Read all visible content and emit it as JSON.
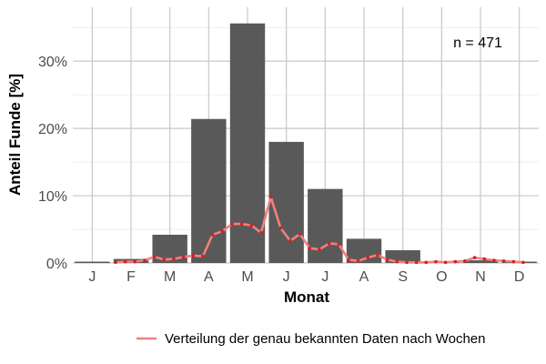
{
  "chart_data": {
    "type": "bar",
    "categories": [
      "J",
      "F",
      "M",
      "A",
      "M",
      "J",
      "J",
      "A",
      "S",
      "O",
      "N",
      "D"
    ],
    "values": [
      0.2,
      0.6,
      4.2,
      21.4,
      35.6,
      18.0,
      11.0,
      3.6,
      1.9,
      0.2,
      0.4,
      0.2
    ],
    "xlabel": "Monat",
    "ylabel": "Anteil Funde [%]",
    "ylim": [
      0,
      38
    ],
    "yticks": [
      0,
      10,
      20,
      30
    ],
    "ytick_labels": [
      "0%",
      "10%",
      "20%",
      "30%"
    ],
    "grid": true,
    "annotation": "n = 471",
    "bar_color": "#595959",
    "line_series": {
      "name": "Verteilung der genau bekannten Daten nach Wochen",
      "color": "#f08080",
      "point_color": "#d61f1f",
      "x": [
        1.6,
        1.85,
        2.1,
        2.35,
        2.6,
        2.85,
        3.1,
        3.35,
        3.6,
        3.85,
        4.1,
        4.35,
        4.6,
        4.85,
        5.1,
        5.35,
        5.6,
        5.85,
        6.1,
        6.35,
        6.6,
        6.85,
        7.1,
        7.35,
        7.6,
        7.85,
        8.1,
        8.35,
        8.6,
        8.85,
        9.1,
        9.35,
        9.6,
        9.85,
        10.1,
        10.35,
        10.6,
        10.85,
        11.1,
        11.35,
        11.6,
        11.85,
        12.1
      ],
      "y": [
        0.1,
        0.2,
        0.2,
        0.4,
        0.9,
        0.5,
        0.6,
        0.9,
        1.1,
        1.0,
        4.2,
        4.7,
        5.8,
        5.8,
        5.6,
        4.5,
        9.8,
        5.2,
        3.3,
        4.3,
        2.2,
        2.0,
        2.9,
        2.8,
        0.5,
        0.3,
        0.8,
        1.2,
        0.5,
        0.2,
        0.1,
        0.1,
        0.1,
        0.2,
        0.1,
        0.2,
        0.3,
        0.8,
        0.6,
        0.4,
        0.3,
        0.2,
        0.1
      ]
    }
  }
}
